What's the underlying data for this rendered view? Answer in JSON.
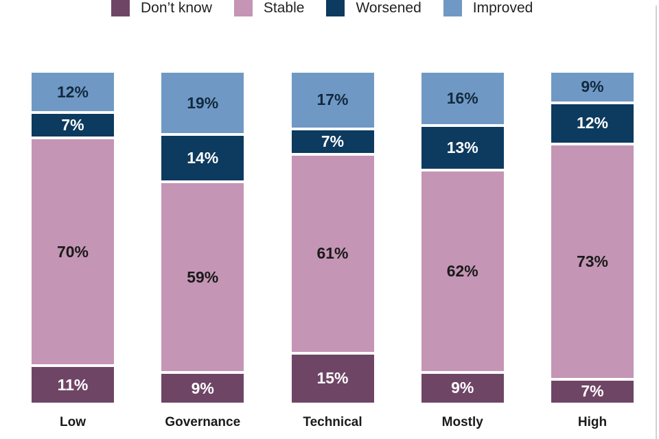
{
  "chart_data": {
    "type": "bar",
    "subtype": "stacked-percentage",
    "title": "",
    "xlabel": "",
    "ylabel": "",
    "grid": false,
    "axes_visible": false,
    "legend_position": "top",
    "value_suffix": "%",
    "categories": [
      "Low",
      "Governance",
      "Technical",
      "Mostly",
      "High"
    ],
    "series": [
      {
        "name": "Don’t know",
        "color": "#6F4566",
        "label_color": "#ffffff",
        "values": [
          11,
          9,
          15,
          9,
          7
        ]
      },
      {
        "name": "Stable",
        "color": "#C495B5",
        "label_color": "#1a1a1a",
        "values": [
          70,
          59,
          61,
          62,
          73
        ]
      },
      {
        "name": "Worsened",
        "color": "#0D3A5F",
        "label_color": "#ffffff",
        "values": [
          7,
          14,
          7,
          13,
          12
        ]
      },
      {
        "name": "Improved",
        "color": "#6F99C4",
        "label_color": "#12293f",
        "values": [
          12,
          19,
          17,
          16,
          9
        ]
      }
    ],
    "stack_order_bottom_to_top": [
      "Don’t know",
      "Stable",
      "Worsened",
      "Improved"
    ],
    "segment_gap_color": "#ffffff",
    "page_border_color": "#d2d2d2"
  }
}
